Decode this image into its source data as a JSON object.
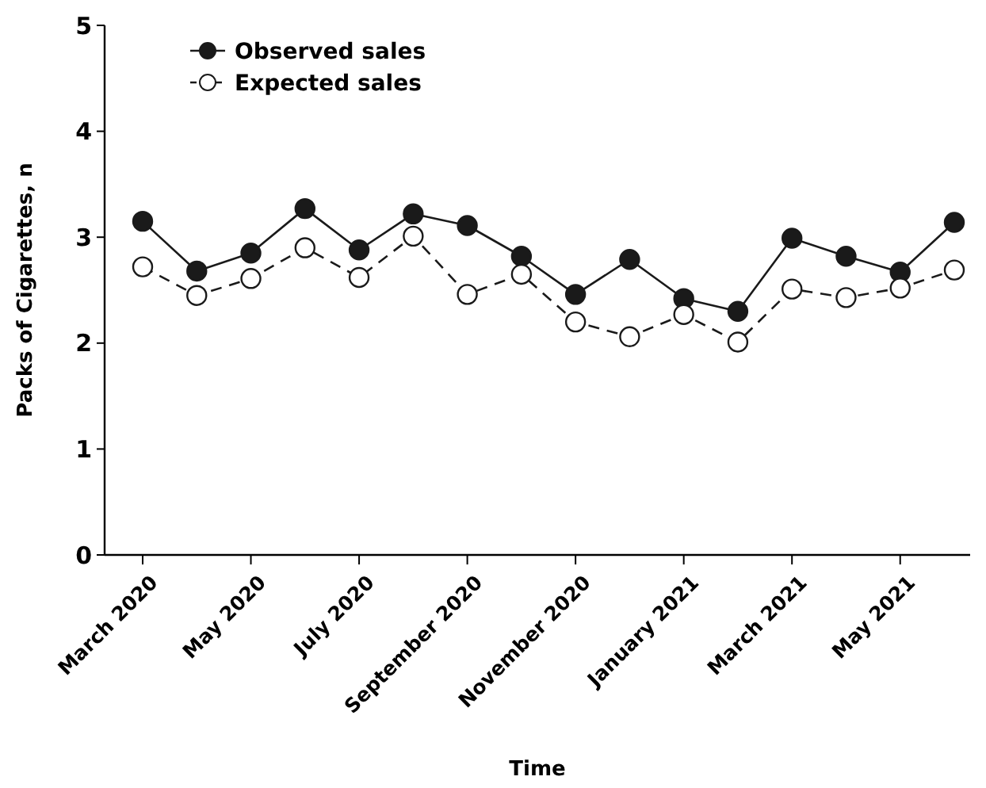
{
  "chart_data": {
    "type": "line",
    "xlabel": "Time",
    "ylabel": "Packs of Cigarettes, n",
    "categories": [
      "March 2020",
      null,
      "May 2020",
      null,
      "July 2020",
      null,
      "September 2020",
      null,
      "November 2020",
      null,
      "January 2021",
      null,
      "March 2021",
      null,
      "May 2021",
      null
    ],
    "ylim": [
      0,
      5
    ],
    "yticks": [
      0,
      1,
      2,
      3,
      4,
      5
    ],
    "grid": false,
    "legend": "top left",
    "series": [
      {
        "name": "Observed sales",
        "color": "#1a1a1a",
        "marker": "circle",
        "line_style": "solid",
        "values": [
          3.15,
          2.68,
          2.85,
          3.27,
          2.88,
          3.22,
          3.11,
          2.82,
          2.46,
          2.79,
          2.42,
          2.3,
          2.99,
          2.82,
          2.67,
          3.14
        ]
      },
      {
        "name": "Expected sales",
        "color": "#1a1a1a",
        "marker": "circle",
        "line_style": "dashed",
        "values": [
          2.72,
          2.45,
          2.61,
          2.9,
          2.62,
          3.01,
          2.46,
          2.65,
          2.2,
          2.06,
          2.27,
          2.01,
          2.51,
          2.43,
          2.52,
          2.69
        ]
      }
    ]
  }
}
